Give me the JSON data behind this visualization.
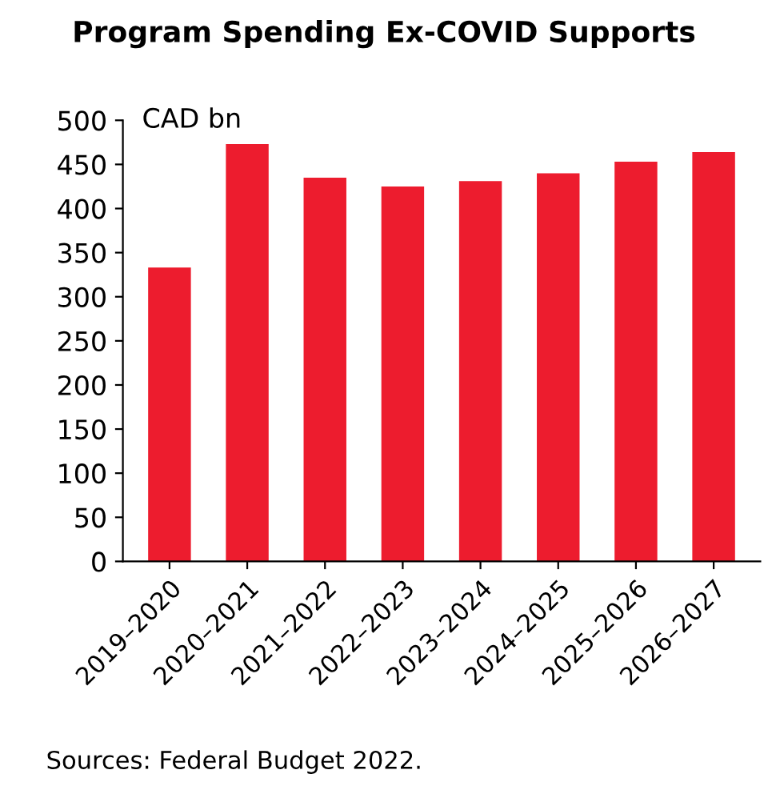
{
  "chart_data": {
    "type": "bar",
    "title": "Program Spending Ex-COVID Supports",
    "ylabel": "CAD bn",
    "categories": [
      "2019–2020",
      "2020–2021",
      "2021–2022",
      "2022–2023",
      "2023–2024",
      "2024–2025",
      "2025–2026",
      "2026–2027"
    ],
    "values": [
      333,
      473,
      435,
      425,
      431,
      440,
      453,
      464
    ],
    "color": "#ed1c2e",
    "ylim": [
      0,
      500
    ],
    "yticks": [
      0,
      50,
      100,
      150,
      200,
      250,
      300,
      350,
      400,
      450,
      500
    ],
    "grid": false,
    "annotations": [
      "Sources: Federal Budget 2022."
    ]
  }
}
